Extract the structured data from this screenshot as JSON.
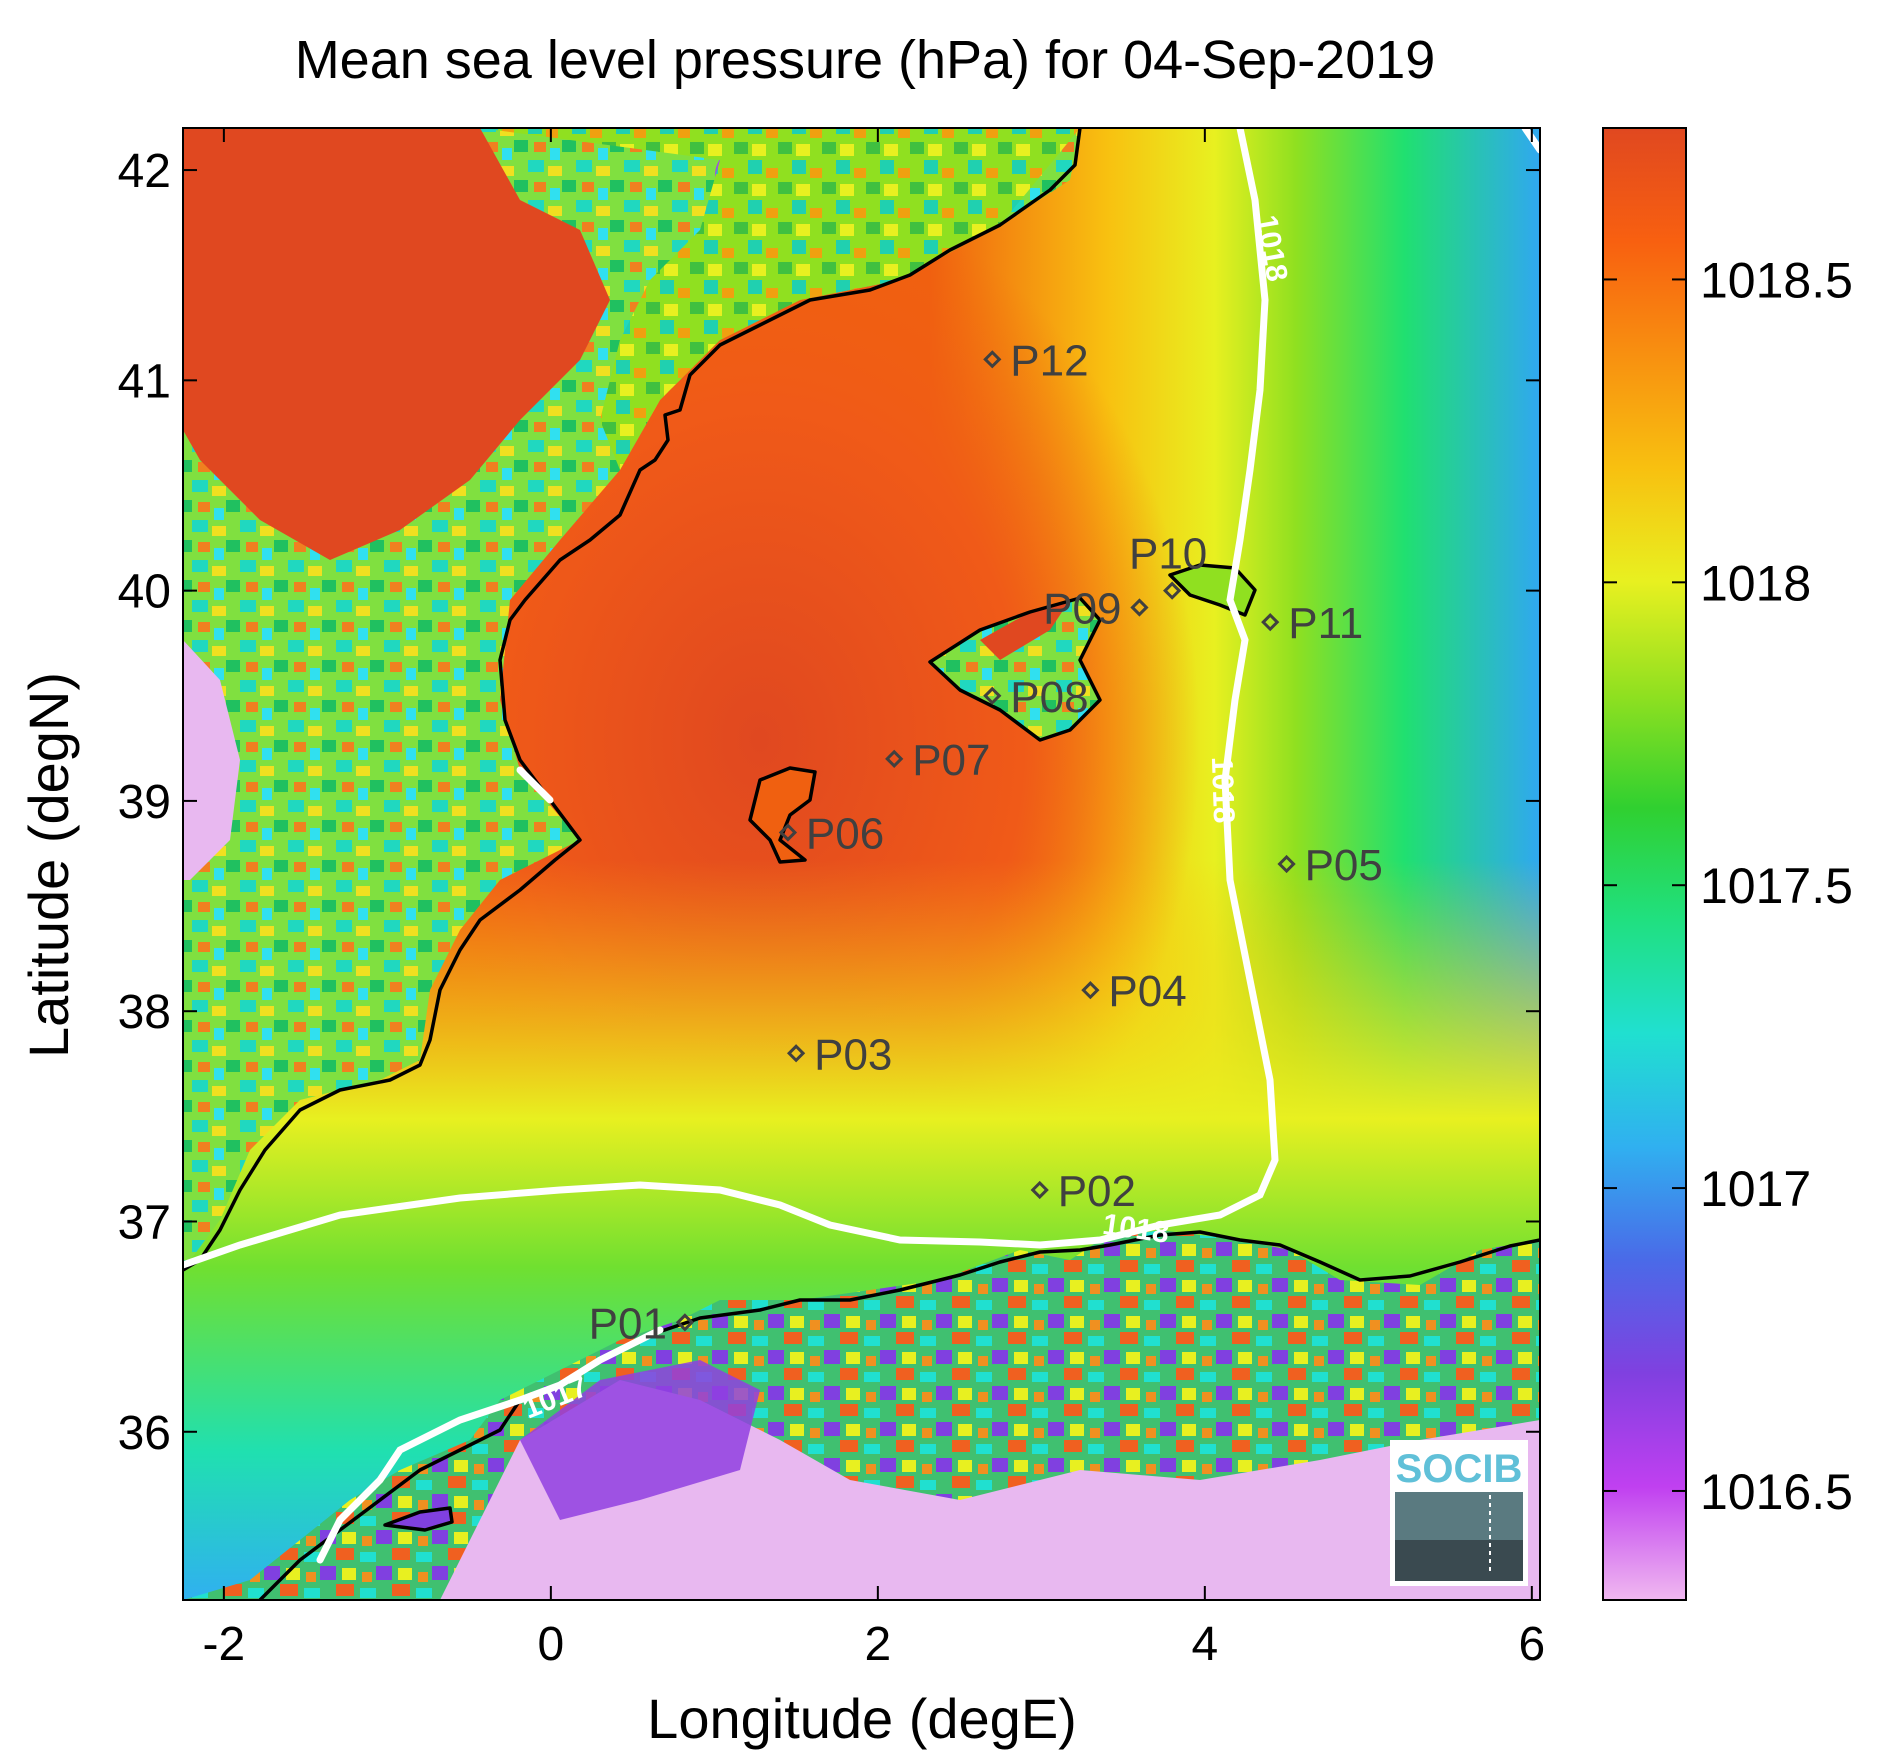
{
  "title": "Mean sea level pressure (hPa) for 04-Sep-2019",
  "axes": {
    "xlabel": "Longitude (degE)",
    "ylabel": "Latitude (degN)",
    "xlim": [
      -2.25,
      6.05
    ],
    "ylim": [
      35.2,
      42.2
    ],
    "xticks": [
      {
        "value": -2,
        "label": "-2"
      },
      {
        "value": 0,
        "label": "0"
      },
      {
        "value": 2,
        "label": "2"
      },
      {
        "value": 4,
        "label": "4"
      },
      {
        "value": 6,
        "label": "6"
      }
    ],
    "yticks": [
      {
        "value": 36,
        "label": "36"
      },
      {
        "value": 37,
        "label": "37"
      },
      {
        "value": 38,
        "label": "38"
      },
      {
        "value": 39,
        "label": "39"
      },
      {
        "value": 40,
        "label": "40"
      },
      {
        "value": 41,
        "label": "41"
      },
      {
        "value": 42,
        "label": "42"
      }
    ]
  },
  "colorbar": {
    "range": [
      1016.32,
      1018.75
    ],
    "ticks": [
      {
        "value": 1016.5,
        "label": "1016.5"
      },
      {
        "value": 1017,
        "label": "1017"
      },
      {
        "value": 1017.5,
        "label": "1017.5"
      },
      {
        "value": 1018,
        "label": "1018"
      },
      {
        "value": 1018.5,
        "label": "1018.5"
      }
    ],
    "colors": [
      "#f0b8f0",
      "#c040f0",
      "#8040e0",
      "#4a6ae8",
      "#30b0f0",
      "#20e0d0",
      "#20e080",
      "#30d030",
      "#90e020",
      "#e8f020",
      "#f8c010",
      "#f89010",
      "#f86010",
      "#e04820"
    ]
  },
  "stations": [
    {
      "name": "P01",
      "lon": 0.82,
      "lat": 36.52,
      "label_side": "left"
    },
    {
      "name": "P02",
      "lon": 2.99,
      "lat": 37.15,
      "label_side": "right"
    },
    {
      "name": "P03",
      "lon": 1.5,
      "lat": 37.8,
      "label_side": "right"
    },
    {
      "name": "P04",
      "lon": 3.3,
      "lat": 38.1,
      "label_side": "right"
    },
    {
      "name": "P05",
      "lon": 4.5,
      "lat": 38.7,
      "label_side": "right"
    },
    {
      "name": "P06",
      "lon": 1.45,
      "lat": 38.85,
      "label_side": "right"
    },
    {
      "name": "P07",
      "lon": 2.1,
      "lat": 39.2,
      "label_side": "right"
    },
    {
      "name": "P08",
      "lon": 2.7,
      "lat": 39.5,
      "label_side": "right"
    },
    {
      "name": "P09",
      "lon": 3.6,
      "lat": 39.92,
      "label_side": "left"
    },
    {
      "name": "P10",
      "lon": 3.8,
      "lat": 40.0,
      "label_side": "above"
    },
    {
      "name": "P11",
      "lon": 4.4,
      "lat": 39.85,
      "label_side": "right"
    },
    {
      "name": "P12",
      "lon": 2.7,
      "lat": 41.1,
      "label_side": "right"
    }
  ],
  "contours": [
    {
      "level": "1018",
      "label_positions": [
        {
          "lon": 3.57,
          "lat": 36.92,
          "angle": 8
        },
        {
          "lon": 4.35,
          "lat": 41.62,
          "angle": 80
        },
        {
          "lon": 4.05,
          "lat": 39.05,
          "angle": 88
        }
      ]
    },
    {
      "level": "1017",
      "label_positions": [
        {
          "lon": 0.05,
          "lat": 36.12,
          "angle": -22
        }
      ]
    }
  ],
  "logo": {
    "text": "SOCIB"
  }
}
